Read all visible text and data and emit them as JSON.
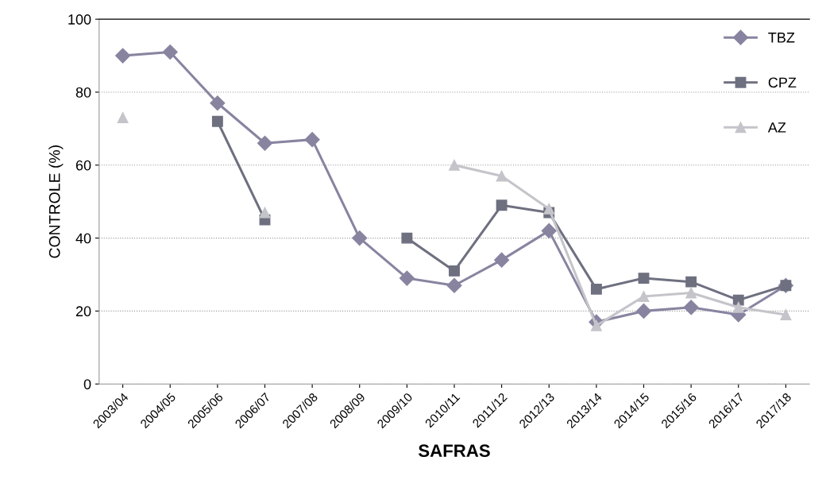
{
  "chart_data": {
    "type": "line",
    "xlabel": "SAFRAS",
    "ylabel": "CONTROLE (%)",
    "categories": [
      "2003/04",
      "2004/05",
      "2005/06",
      "2006/07",
      "2007/08",
      "2008/09",
      "2009/10",
      "2010/11",
      "2011/12",
      "2012/13",
      "2013/14",
      "2014/15",
      "2015/16",
      "2016/17",
      "2017/18"
    ],
    "series": [
      {
        "name": "TBZ",
        "color": "#8884a0",
        "marker": "diamond",
        "values": [
          90,
          91,
          77,
          66,
          67,
          40,
          29,
          27,
          34,
          42,
          17,
          20,
          21,
          19,
          27
        ]
      },
      {
        "name": "CPZ",
        "color": "#6e7080",
        "marker": "square",
        "values": [
          null,
          null,
          72,
          45,
          null,
          null,
          40,
          31,
          49,
          47,
          26,
          29,
          28,
          23,
          27
        ]
      },
      {
        "name": "AZ",
        "color": "#c4c4ca",
        "marker": "triangle",
        "values": [
          73,
          null,
          null,
          47,
          null,
          null,
          null,
          60,
          57,
          48,
          16,
          24,
          25,
          21,
          19
        ]
      }
    ],
    "ylim": [
      0,
      100
    ],
    "yticks": [
      0,
      20,
      40,
      60,
      80,
      100
    ],
    "grid": "y",
    "legend": "top right",
    "line_style": "solid"
  }
}
